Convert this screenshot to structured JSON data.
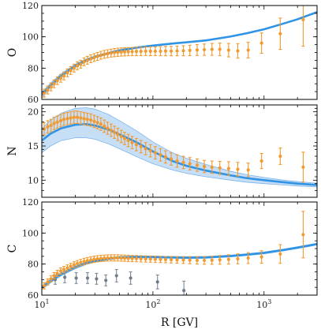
{
  "chart_data": {
    "x_axis": {
      "label": "R [GV]",
      "scale": "log",
      "range": [
        10,
        3000
      ],
      "major_ticks": [
        10,
        100,
        1000
      ],
      "major_tick_labels": [
        "10",
        "10",
        "10"
      ],
      "major_tick_exponents": [
        "1",
        "2",
        "3"
      ]
    },
    "panels": [
      {
        "ylabel": "O",
        "ylim": [
          60,
          120
        ],
        "yticks": [
          60,
          80,
          100,
          120
        ],
        "model_band": {
          "x": [
            10,
            12,
            15,
            20,
            25,
            30,
            40,
            50,
            70,
            100,
            150,
            200,
            300,
            500,
            700,
            1000,
            1500,
            2000,
            3000
          ],
          "lower": [
            61,
            67.5,
            74,
            80.5,
            84,
            86.5,
            89,
            90.8,
            92.6,
            94,
            95.4,
            96.2,
            97.4,
            100,
            102,
            104.5,
            108.3,
            111,
            115.5
          ],
          "upper": [
            64.5,
            70.5,
            76.5,
            82.5,
            85.8,
            87.9,
            90.2,
            91.8,
            93.5,
            94.8,
            96.1,
            96.9,
            98.1,
            100.5,
            102.5,
            105,
            108.7,
            111.4,
            116
          ]
        },
        "model": {
          "x": [
            10,
            12,
            15,
            20,
            25,
            30,
            40,
            50,
            70,
            100,
            150,
            200,
            300,
            500,
            700,
            1000,
            1500,
            2000,
            3000
          ],
          "y": [
            63,
            69,
            75.3,
            81.5,
            85,
            87.2,
            89.6,
            91.3,
            93,
            94.4,
            95.7,
            96.5,
            97.7,
            100.2,
            102.3,
            104.8,
            108.5,
            111.2,
            115.8
          ]
        },
        "series": [
          {
            "color": "orange",
            "x": [
              10.5,
              11.3,
              12.1,
              12.9,
              13.8,
              14.8,
              15.8,
              17,
              18.2,
              19.5,
              20.9,
              22.4,
              24,
              25.7,
              27.6,
              29.6,
              31.7,
              34,
              36.5,
              39.1,
              42,
              45,
              48.3,
              51.9,
              55.7,
              60,
              65,
              71,
              78,
              86,
              95,
              105,
              117,
              130,
              146,
              165,
              188,
              215,
              250,
              290,
              340,
              400,
              480,
              580,
              720,
              950,
              1400,
              2250
            ],
            "y": [
              64,
              66,
              68,
              70,
              72,
              73.5,
              75,
              77,
              78.5,
              80,
              81.5,
              82.5,
              84,
              85,
              86,
              86.8,
              87.5,
              88.2,
              88.8,
              89.2,
              89.6,
              89.9,
              90.1,
              90.3,
              90.4,
              90.5,
              90.6,
              90.7,
              90.7,
              90.8,
              90.8,
              90.8,
              90.8,
              90.9,
              90.9,
              91,
              91.1,
              91.3,
              91.6,
              91.8,
              92,
              92,
              91.5,
              91,
              91.5,
              96,
              102,
              111
            ],
            "err": [
              2.5,
              2.5,
              2.5,
              2.5,
              2.5,
              2.5,
              2.5,
              2.5,
              2.5,
              2.5,
              2.5,
              2.5,
              2.5,
              2.5,
              2.5,
              2.5,
              2.5,
              2.5,
              2.5,
              2.5,
              2.5,
              2.6,
              2.6,
              2.6,
              2.6,
              2.6,
              2.6,
              2.7,
              2.7,
              2.7,
              2.8,
              2.8,
              2.9,
              3,
              3,
              3.1,
              3.2,
              3.3,
              3.5,
              3.6,
              3.8,
              4,
              4.3,
              4.6,
              5,
              6.5,
              10,
              17
            ]
          }
        ]
      },
      {
        "ylabel": "N",
        "ylim": [
          7.5,
          21
        ],
        "yticks": [
          10,
          15,
          20
        ],
        "model_band": {
          "x": [
            10,
            12,
            15,
            20,
            25,
            30,
            40,
            50,
            70,
            100,
            150,
            200,
            300,
            500,
            700,
            1000,
            1500,
            2000,
            3000
          ],
          "lower": [
            14,
            15,
            15.8,
            16.2,
            16.2,
            16,
            15.3,
            14.6,
            13.5,
            12.4,
            11.5,
            11,
            10.5,
            10,
            9.7,
            9.5,
            9.3,
            9.15,
            9
          ],
          "upper": [
            17.5,
            18.8,
            19.8,
            20.5,
            20.6,
            20.4,
            19.6,
            18.7,
            17.3,
            15.6,
            14,
            13.2,
            12.3,
            11.3,
            10.8,
            10.4,
            10,
            9.8,
            9.55
          ]
        },
        "model": {
          "x": [
            10,
            12,
            15,
            20,
            25,
            30,
            40,
            50,
            70,
            100,
            150,
            200,
            300,
            500,
            700,
            1000,
            1500,
            2000,
            3000
          ],
          "y": [
            15.8,
            16.8,
            17.6,
            18.1,
            18.2,
            18,
            17.4,
            16.7,
            15.6,
            14.2,
            12.8,
            12.1,
            11.4,
            10.7,
            10.3,
            10,
            9.7,
            9.5,
            9.3
          ]
        },
        "series": [
          {
            "color": "orange",
            "x": [
              10.5,
              11.3,
              12.1,
              12.9,
              13.8,
              14.8,
              15.8,
              17,
              18.2,
              19.5,
              20.9,
              22.4,
              24,
              25.7,
              27.6,
              29.6,
              31.7,
              34,
              36.5,
              39.1,
              42,
              45,
              48.3,
              51.9,
              55.7,
              60,
              65,
              71,
              78,
              86,
              95,
              105,
              117,
              130,
              146,
              165,
              188,
              215,
              250,
              290,
              340,
              400,
              480,
              580,
              720,
              950,
              1400,
              2250
            ],
            "y": [
              17.5,
              17.8,
              18,
              18.3,
              18.5,
              18.7,
              18.9,
              19,
              19.1,
              19.2,
              19.2,
              19.1,
              19,
              18.9,
              18.8,
              18.6,
              18.4,
              18.2,
              17.9,
              17.6,
              17.3,
              17,
              16.7,
              16.4,
              16.1,
              15.8,
              15.5,
              15.2,
              14.9,
              14.6,
              14.3,
              14,
              13.7,
              13.4,
              13.1,
              12.8,
              12.6,
              12.4,
              12.2,
              12,
              11.9,
              11.8,
              11.7,
              11.6,
              11.5,
              12.8,
              13.5,
              11.9
            ],
            "err": [
              0.9,
              0.9,
              0.9,
              0.9,
              0.9,
              0.9,
              0.9,
              0.9,
              0.9,
              0.9,
              0.9,
              0.9,
              0.9,
              0.9,
              0.9,
              0.9,
              0.9,
              0.9,
              0.9,
              0.9,
              0.9,
              0.9,
              0.9,
              0.9,
              0.9,
              0.9,
              0.9,
              0.9,
              0.9,
              0.9,
              0.9,
              0.9,
              0.9,
              0.9,
              0.9,
              0.9,
              0.9,
              0.9,
              0.9,
              0.9,
              0.9,
              0.95,
              1,
              1,
              1,
              1.1,
              1.2,
              2.2
            ]
          }
        ]
      },
      {
        "ylabel": "C",
        "ylim": [
          60,
          120
        ],
        "yticks": [
          60,
          80,
          100,
          120
        ],
        "model_band": {
          "x": [
            10,
            12,
            15,
            20,
            25,
            30,
            40,
            50,
            70,
            100,
            150,
            200,
            300,
            500,
            700,
            1000,
            1500,
            2000,
            3000
          ],
          "lower": [
            63.5,
            68,
            72.5,
            77,
            79.7,
            81.2,
            82.8,
            83.6,
            84,
            84,
            83.7,
            83.6,
            83.7,
            84.6,
            85.5,
            86.6,
            88.5,
            90,
            92.3
          ],
          "upper": [
            66,
            70.3,
            74.5,
            78.8,
            81.3,
            82.8,
            84.2,
            84.9,
            85.2,
            85.2,
            84.9,
            84.8,
            84.9,
            85.8,
            86.7,
            87.8,
            89.7,
            91.2,
            93.5
          ]
        },
        "model": {
          "x": [
            10,
            12,
            15,
            20,
            25,
            30,
            40,
            50,
            70,
            100,
            150,
            200,
            300,
            500,
            700,
            1000,
            1500,
            2000,
            3000
          ],
          "y": [
            64.8,
            69.2,
            73.5,
            77.9,
            80.5,
            82,
            83.5,
            84.3,
            84.6,
            84.6,
            84.3,
            84.2,
            84.3,
            85.2,
            86.1,
            87.2,
            89.1,
            90.6,
            92.9
          ]
        },
        "series": [
          {
            "color": "orange",
            "x": [
              10.5,
              11.3,
              12.1,
              12.9,
              13.8,
              14.8,
              15.8,
              17,
              18.2,
              19.5,
              20.9,
              22.4,
              24,
              25.7,
              27.6,
              29.6,
              31.7,
              34,
              36.5,
              39.1,
              42,
              45,
              48.3,
              51.9,
              55.7,
              60,
              65,
              71,
              78,
              86,
              95,
              105,
              117,
              130,
              146,
              165,
              188,
              215,
              250,
              290,
              340,
              400,
              480,
              580,
              720,
              950,
              1400,
              2250
            ],
            "y": [
              66,
              68.5,
              70.5,
              72.5,
              74,
              75.5,
              76.5,
              77.5,
              78.5,
              79.5,
              80.3,
              81,
              81.7,
              82.2,
              82.7,
              83.1,
              83.4,
              83.6,
              83.8,
              83.9,
              84,
              84,
              84,
              83.9,
              83.8,
              83.7,
              83.6,
              83.5,
              83.4,
              83.3,
              83.2,
              83.1,
              83,
              82.9,
              82.8,
              82.7,
              82.6,
              82.5,
              82.4,
              82.4,
              82.5,
              82.7,
              83,
              83.4,
              83.9,
              84.6,
              86.5,
              99
            ],
            "err": [
              2,
              2,
              2,
              2,
              2,
              2,
              2,
              2,
              2,
              2,
              2,
              2,
              2,
              2,
              2,
              2,
              2,
              2,
              2,
              2,
              2,
              2,
              2,
              2,
              2,
              2,
              2,
              2,
              2,
              2,
              2,
              2,
              2,
              2,
              2.1,
              2.1,
              2.2,
              2.3,
              2.4,
              2.5,
              2.6,
              2.8,
              3,
              3.2,
              3.5,
              4,
              6,
              15
            ]
          },
          {
            "color": "gray",
            "x": [
              13.2,
              16.1,
              20.4,
              25.8,
              31.1,
              37.7,
              47,
              63,
              110,
              190
            ],
            "y": [
              70,
              71.5,
              71,
              71,
              70.5,
              69.5,
              72.5,
              71,
              68.5,
              63
            ],
            "err": [
              3,
              3.5,
              3.5,
              3.5,
              3.5,
              3.5,
              4,
              4,
              4.5,
              6
            ]
          }
        ]
      }
    ]
  }
}
